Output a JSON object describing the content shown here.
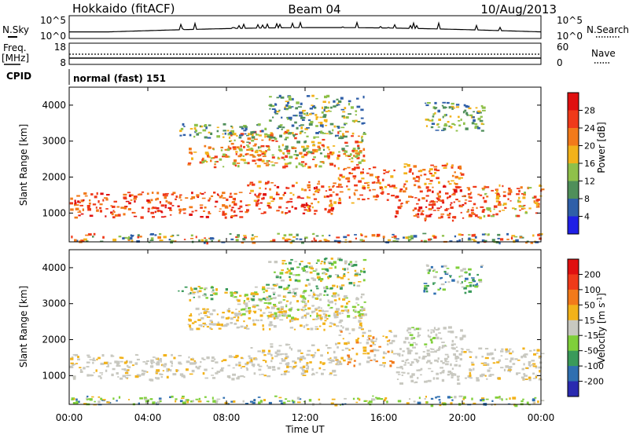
{
  "header": {
    "station": "Hokkaido (fitACF)",
    "beam": "Beam 04",
    "date": "10/Aug/2013"
  },
  "top_panels": {
    "nsky_label": "N.Sky",
    "nsky_ticks": [
      "10^5",
      "10^0"
    ],
    "nsearch_label": "N.Search",
    "nsearch_ticks": [
      "10^5",
      "10^0"
    ],
    "freq_label": "Freq.",
    "freq_unit": "[MHz]",
    "freq_ticks": [
      "18",
      "8"
    ],
    "nave_label": "Nave",
    "nave_ticks": [
      "60",
      "0"
    ],
    "cpid_label": "CPID",
    "cpid_value": "normal (fast) 151"
  },
  "chart_data": [
    {
      "type": "heatmap",
      "quantity": "Power",
      "ylabel": "Slant Range [km]",
      "ylim": [
        200,
        4500
      ],
      "yticks": [
        "1000",
        "2000",
        "3000",
        "4000"
      ],
      "xlim_hours": [
        0,
        24
      ],
      "colorbar_label": "Power [dB]",
      "colorbar_ticks": [
        "4",
        "8",
        "12",
        "16",
        "20",
        "24",
        "28"
      ],
      "colors": [
        "#1f1fe6",
        "#2f5fa8",
        "#4f8f5a",
        "#8fc04a",
        "#f2b21a",
        "#f27a1a",
        "#ef3a1a",
        "#e01010"
      ]
    },
    {
      "type": "heatmap",
      "quantity": "Velocity",
      "ylabel": "Slant Range [km]",
      "ylim": [
        200,
        4500
      ],
      "yticks": [
        "1000",
        "2000",
        "3000",
        "4000"
      ],
      "xlim_hours": [
        0,
        24
      ],
      "colorbar_label": "Velocity [m s^-1]",
      "colorbar_ticks": [
        "200",
        "100",
        "50",
        "15",
        "-15",
        "-50",
        "-100",
        "-200"
      ],
      "colors": [
        "#2a2ab0",
        "#2f6fb0",
        "#3a9a5a",
        "#7fcf3a",
        "#c8c8c0",
        "#f2b21a",
        "#f27a1a",
        "#ef3a1a",
        "#e01010"
      ]
    }
  ],
  "xaxis": {
    "ticks": [
      "00:00",
      "04:00",
      "08:00",
      "12:00",
      "16:00",
      "20:00",
      "00:00"
    ],
    "label": "Time UT"
  }
}
